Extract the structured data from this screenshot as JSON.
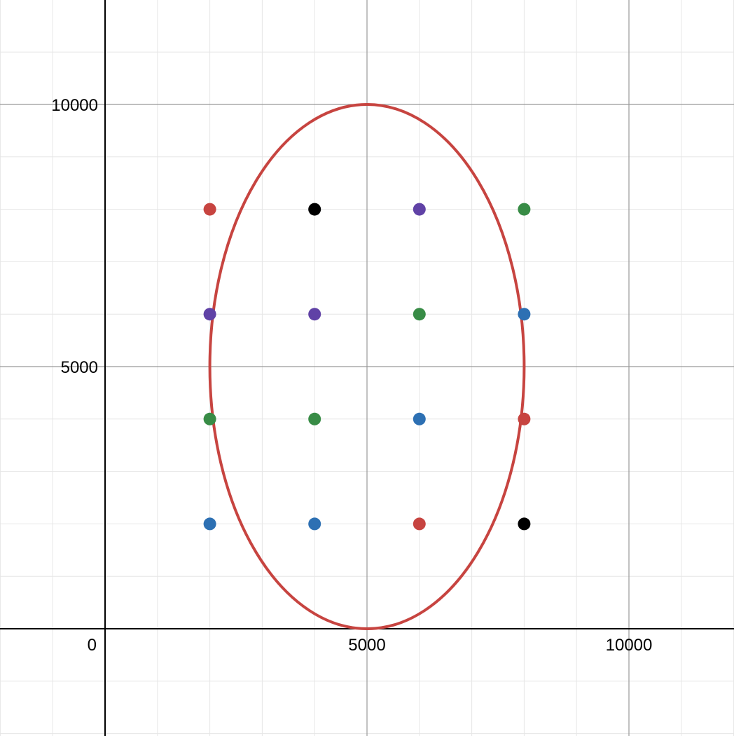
{
  "chart_data": {
    "type": "scatter",
    "title": "",
    "xlabel": "",
    "ylabel": "",
    "xlim": [
      -2000,
      12000
    ],
    "ylim": [
      -2000,
      12000
    ],
    "grid": true,
    "major_step": 5000,
    "minor_step": 1000,
    "x_ticks": [
      {
        "value": 0,
        "label": "0"
      },
      {
        "value": 5000,
        "label": "5000"
      },
      {
        "value": 10000,
        "label": "10000"
      }
    ],
    "y_ticks": [
      {
        "value": 5000,
        "label": "5000"
      },
      {
        "value": 10000,
        "label": "10000"
      }
    ],
    "curves": [
      {
        "kind": "ellipse",
        "center": [
          5000,
          5000
        ],
        "rx": 3000,
        "ry": 5000,
        "color": "#c74440"
      }
    ],
    "points": [
      {
        "x": 2000,
        "y": 8000,
        "color": "#c74440"
      },
      {
        "x": 4000,
        "y": 8000,
        "color": "#000000"
      },
      {
        "x": 6000,
        "y": 8000,
        "color": "#6042a6"
      },
      {
        "x": 8000,
        "y": 8000,
        "color": "#388c46"
      },
      {
        "x": 2000,
        "y": 6000,
        "color": "#6042a6"
      },
      {
        "x": 4000,
        "y": 6000,
        "color": "#6042a6"
      },
      {
        "x": 6000,
        "y": 6000,
        "color": "#388c46"
      },
      {
        "x": 8000,
        "y": 6000,
        "color": "#2d70b3"
      },
      {
        "x": 2000,
        "y": 4000,
        "color": "#388c46"
      },
      {
        "x": 4000,
        "y": 4000,
        "color": "#388c46"
      },
      {
        "x": 6000,
        "y": 4000,
        "color": "#2d70b3"
      },
      {
        "x": 8000,
        "y": 4000,
        "color": "#c74440"
      },
      {
        "x": 2000,
        "y": 2000,
        "color": "#2d70b3"
      },
      {
        "x": 4000,
        "y": 2000,
        "color": "#2d70b3"
      },
      {
        "x": 6000,
        "y": 2000,
        "color": "#c74440"
      },
      {
        "x": 8000,
        "y": 2000,
        "color": "#000000"
      }
    ]
  },
  "colors": {
    "minor_grid": "#e6e6e6",
    "major_grid": "#999999",
    "axis": "#000000"
  }
}
